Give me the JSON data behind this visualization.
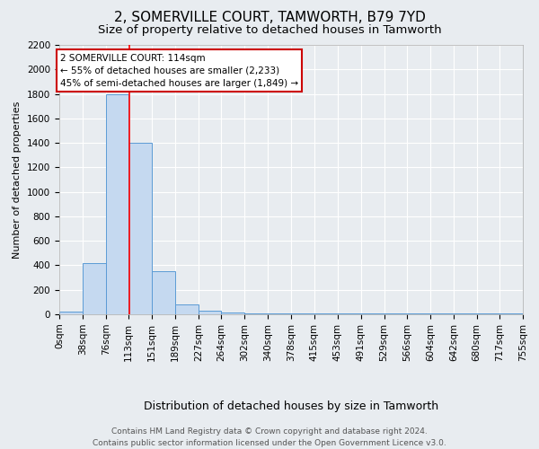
{
  "title": "2, SOMERVILLE COURT, TAMWORTH, B79 7YD",
  "subtitle": "Size of property relative to detached houses in Tamworth",
  "xlabel_bottom": "Distribution of detached houses by size in Tamworth",
  "ylabel": "Number of detached properties",
  "footnote": "Contains HM Land Registry data © Crown copyright and database right 2024.\nContains public sector information licensed under the Open Government Licence v3.0.",
  "annotation_text": "2 SOMERVILLE COURT: 114sqm\n← 55% of detached houses are smaller (2,233)\n45% of semi-detached houses are larger (1,849) →",
  "bin_edges": [
    0,
    38,
    76,
    113,
    151,
    189,
    227,
    264,
    302,
    340,
    378,
    415,
    453,
    491,
    529,
    566,
    604,
    642,
    680,
    717,
    755
  ],
  "bin_counts": [
    20,
    420,
    1800,
    1400,
    350,
    80,
    30,
    15,
    10,
    10,
    10,
    10,
    10,
    10,
    10,
    5,
    5,
    5,
    5,
    5
  ],
  "bar_color": "#c5d9f0",
  "bar_edge_color": "#5b9bd5",
  "red_line_x": 114,
  "ylim": [
    0,
    2200
  ],
  "yticks": [
    0,
    200,
    400,
    600,
    800,
    1000,
    1200,
    1400,
    1600,
    1800,
    2000,
    2200
  ],
  "xtick_labels": [
    "0sqm",
    "38sqm",
    "76sqm",
    "113sqm",
    "151sqm",
    "189sqm",
    "227sqm",
    "264sqm",
    "302sqm",
    "340sqm",
    "378sqm",
    "415sqm",
    "453sqm",
    "491sqm",
    "529sqm",
    "566sqm",
    "604sqm",
    "642sqm",
    "680sqm",
    "717sqm",
    "755sqm"
  ],
  "background_color": "#e8ecf0",
  "grid_color": "#ffffff",
  "annotation_box_color": "#ffffff",
  "annotation_box_edge": "#cc0000",
  "title_fontsize": 11,
  "subtitle_fontsize": 9.5,
  "ylabel_fontsize": 8,
  "xlabel_fontsize": 9,
  "tick_fontsize": 7.5,
  "annotation_fontsize": 7.5,
  "footnote_fontsize": 6.5
}
